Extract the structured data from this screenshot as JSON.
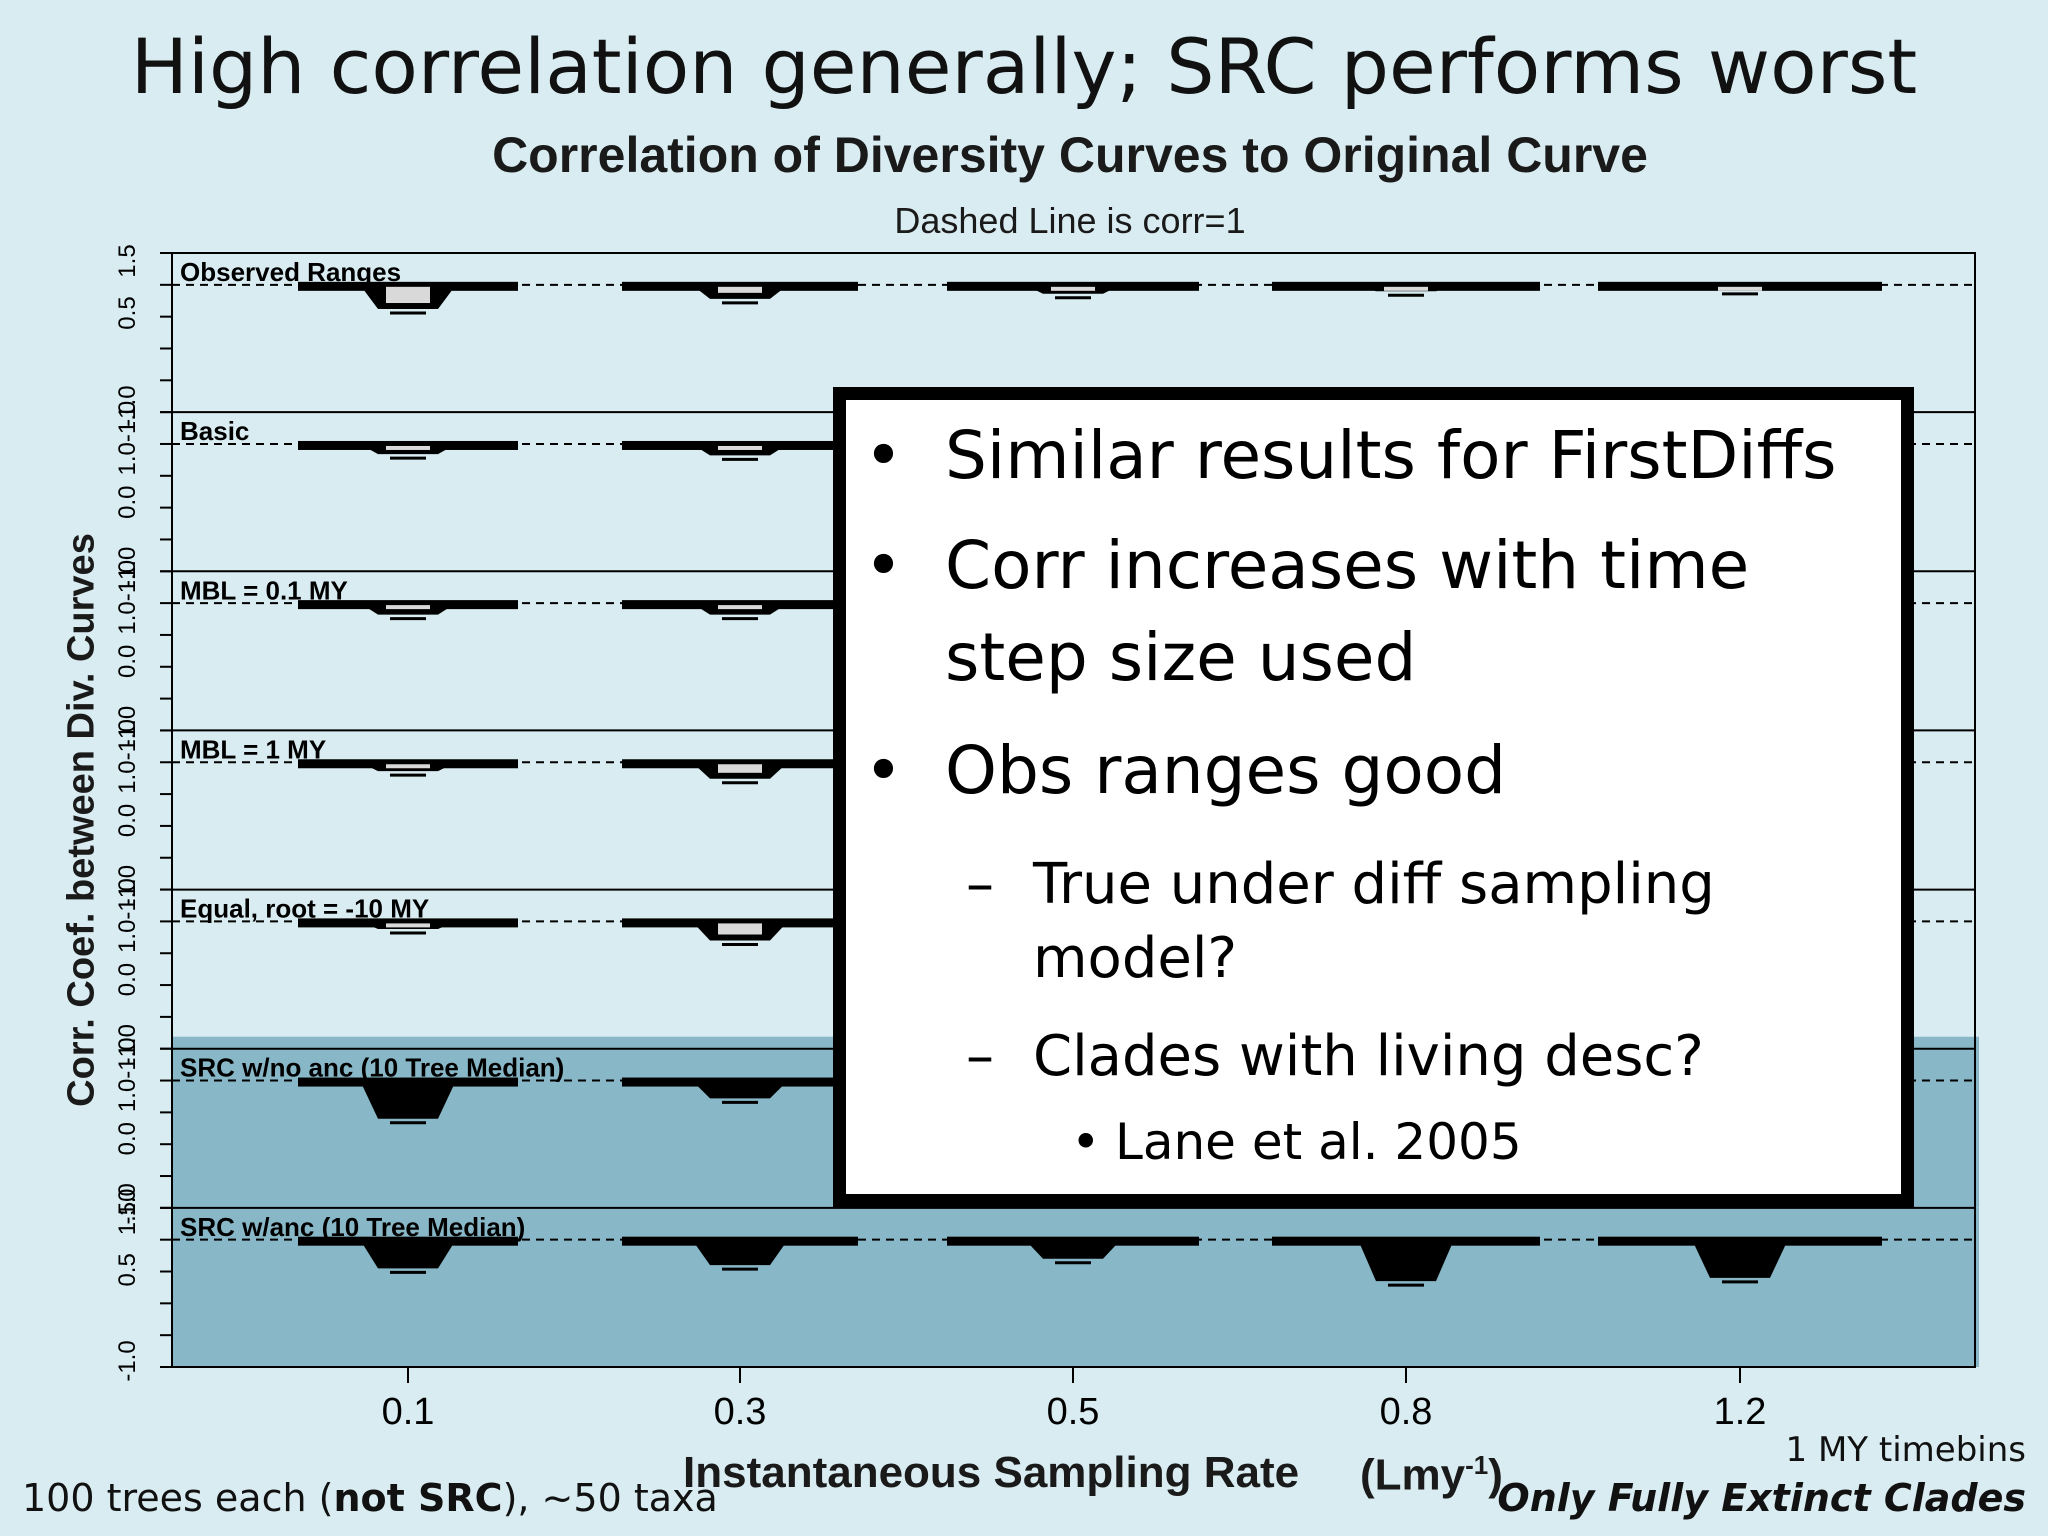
{
  "slide_title": "High correlation generally; SRC performs worst",
  "callout": {
    "bullets": [
      {
        "level": 1,
        "text": "Similar results for FirstDiffs"
      },
      {
        "level": 1,
        "text": "Corr increases with time step size used"
      },
      {
        "level": 1,
        "text": "Obs ranges good"
      },
      {
        "level": 2,
        "text": "True under diff sampling model?"
      },
      {
        "level": 2,
        "text": "Clades with living desc?"
      },
      {
        "level": 3,
        "text": "Lane et al. 2005"
      }
    ]
  },
  "footnotes": {
    "left_prefix": "100 trees each (",
    "left_bold": "not SRC",
    "left_suffix": "), ~50 taxa",
    "right_line1": "1 MY timebins",
    "right_line2": "Only Fully Extinct Clades"
  },
  "colors": {
    "background": "#d9ecf1",
    "highlight_src_panels": "#88b8c8",
    "marks": "#000000"
  },
  "chart_data": {
    "type": "violin",
    "title": "Correlation of Diversity Curves to Original Curve",
    "subtitle": "Dashed Line is corr=1",
    "xlabel": "Instantaneous Sampling Rate",
    "xunit_base": "(Lmy",
    "xunit_sup": "-1",
    "xunit_close": ")",
    "ylabel": "Corr. Coef. between Div. Curves",
    "categories": [
      "0.1",
      "0.3",
      "0.5",
      "0.8",
      "1.2"
    ],
    "reference_line": 1.0,
    "ylim": [
      -1.0,
      1.5
    ],
    "y_ticks": [
      "-1.0",
      "0.0",
      "1.0-1.0"
    ],
    "y_ticks_top": [
      "0.5",
      "1.5"
    ],
    "y_ticks_top_first": [
      "-1.0",
      "0.0",
      "1.0-1.0"
    ],
    "y_ticks_bottom": [
      "-1.0",
      "0.5",
      "1.50"
    ],
    "panels": [
      {
        "label": "Observed Ranges",
        "medians": [
          0.62,
          0.78,
          0.86,
          0.9,
          0.92
        ],
        "highlight": false
      },
      {
        "label": "Basic",
        "medians": [
          0.84,
          0.82,
          null,
          null,
          null
        ],
        "highlight": false
      },
      {
        "label": "MBL = 0.1 MY",
        "medians": [
          0.82,
          0.82,
          null,
          null,
          null
        ],
        "highlight": false
      },
      {
        "label": "MBL = 1 MY",
        "medians": [
          0.86,
          0.74,
          null,
          null,
          null
        ],
        "highlight": false
      },
      {
        "label": "Equal, root = -10 MY",
        "medians": [
          0.88,
          0.7,
          null,
          null,
          null
        ],
        "highlight": false
      },
      {
        "label": "SRC w/no anc (10 Tree Median)",
        "medians": [
          0.4,
          0.72,
          null,
          null,
          null
        ],
        "highlight": true
      },
      {
        "label": "SRC w/anc (10 Tree Median)",
        "medians": [
          0.55,
          0.6,
          0.7,
          0.35,
          0.4
        ],
        "highlight": true
      }
    ]
  }
}
